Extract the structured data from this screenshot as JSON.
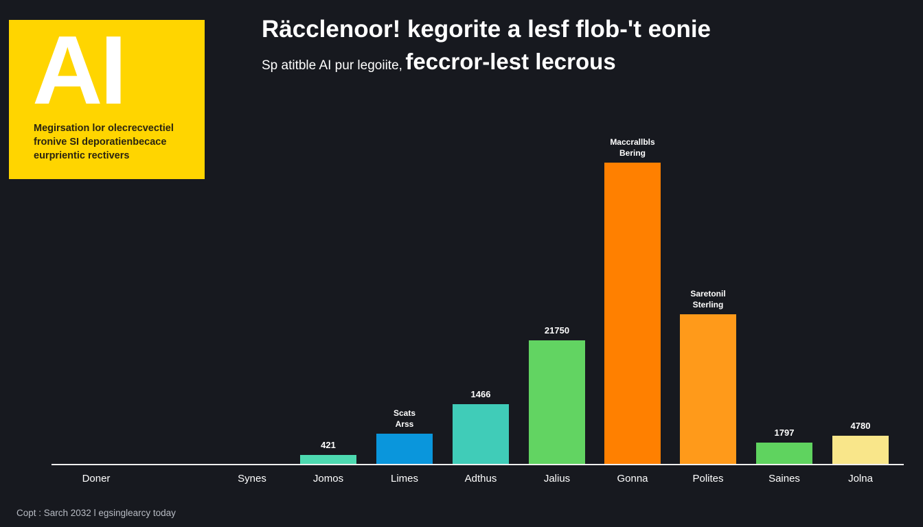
{
  "logo": {
    "mark": "AI",
    "text": "Megirsation lor olecrecvectiel fronive SI deporatienbecace eurprientic rectivers",
    "color": "#ffd500"
  },
  "title": "Räcclenoor! kegorite a lesf flob-'t eonie",
  "subtitle": {
    "small": "Sp atitble AI pur legoiite,",
    "big": "feccror-lest lecrous"
  },
  "footer": "Copt : Sarch 2032 l egsinglearcy today",
  "chart_data": {
    "type": "bar",
    "categories": [
      "Doner",
      "Synes",
      "Jomos",
      "Limes",
      "Adthus",
      "Jalius",
      "Gonna",
      "Polites",
      "Saines",
      "Jolna"
    ],
    "values": [
      0,
      0,
      14,
      45,
      88,
      181,
      440,
      219,
      32,
      42
    ],
    "data_labels": [
      "",
      "",
      "421",
      "Scats\nArss",
      "1466",
      "21750",
      "Maccrallbls\nBering",
      "Saretonil\nSterling",
      "1797",
      "4780"
    ],
    "colors": [
      "#4dd9b0",
      "#4dd9b0",
      "#4dd9b0",
      "#0a96dc",
      "#40ccb8",
      "#62d462",
      "#ff8000",
      "#ff9a1a",
      "#5fd35f",
      "#f9e68a"
    ],
    "ylim": [
      0,
      440
    ],
    "grid": false,
    "legend": "none"
  }
}
